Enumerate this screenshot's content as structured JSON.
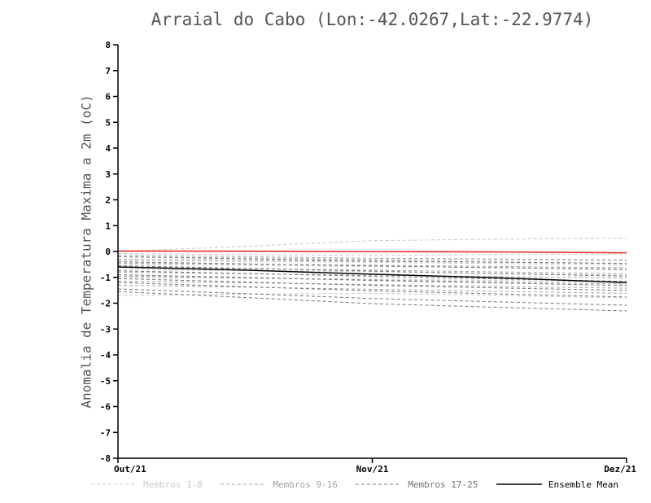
{
  "chart_data": {
    "type": "line",
    "title": "Arraial do Cabo (Lon:-42.0267,Lat:-22.9774)",
    "ylabel": "Anomalia de Temperatura Maxima a 2m (oC)",
    "xlabel": "",
    "xlim": [
      0,
      2
    ],
    "ylim": [
      -8,
      8
    ],
    "x": [
      0,
      0.5,
      1,
      1.5,
      2
    ],
    "x_tick_positions": [
      0,
      1,
      2
    ],
    "x_tick_labels": [
      "Out/21",
      "Nov/21",
      "Dez/21"
    ],
    "y_ticks": [
      8,
      7,
      6,
      5,
      4,
      3,
      2,
      1,
      0,
      -1,
      -2,
      -3,
      -4,
      -5,
      -6,
      -7,
      -8
    ],
    "grid": false,
    "legend_position": "bottom",
    "groups": [
      {
        "name": "Membros 1-8",
        "color": "#c9c9c9",
        "dashed": true,
        "members": [
          [
            0.0,
            0.2,
            0.42,
            0.48,
            0.52
          ],
          [
            -0.08,
            -0.12,
            -0.15,
            -0.12,
            -0.1
          ],
          [
            -0.2,
            -0.25,
            -0.3,
            -0.33,
            -0.36
          ],
          [
            -0.35,
            -0.38,
            -0.42,
            -0.47,
            -0.52
          ],
          [
            -0.5,
            -0.54,
            -0.58,
            -0.62,
            -0.68
          ],
          [
            -0.7,
            -0.74,
            -0.78,
            -0.85,
            -0.92
          ],
          [
            -1.0,
            -1.03,
            -1.07,
            -1.12,
            -1.18
          ],
          [
            -1.7,
            -1.65,
            -1.62,
            -1.7,
            -1.8
          ]
        ]
      },
      {
        "name": "Membros 9-16",
        "color": "#a3a3a3",
        "dashed": true,
        "members": [
          [
            -0.15,
            -0.2,
            -0.26,
            -0.29,
            -0.32
          ],
          [
            -0.3,
            -0.34,
            -0.38,
            -0.42,
            -0.47
          ],
          [
            -0.45,
            -0.49,
            -0.53,
            -0.58,
            -0.63
          ],
          [
            -0.6,
            -0.66,
            -0.72,
            -0.79,
            -0.86
          ],
          [
            -0.8,
            -0.86,
            -0.92,
            -0.97,
            -1.03
          ],
          [
            -0.95,
            -1.03,
            -1.1,
            -1.18,
            -1.26
          ],
          [
            -1.15,
            -1.21,
            -1.28,
            -1.35,
            -1.42
          ],
          [
            -1.3,
            -1.38,
            -1.46,
            -1.54,
            -1.62
          ]
        ]
      },
      {
        "name": "Membros 17-25",
        "color": "#757575",
        "dashed": true,
        "members": [
          [
            -0.2,
            -0.28,
            -0.36,
            -0.41,
            -0.46
          ],
          [
            -0.4,
            -0.48,
            -0.56,
            -0.63,
            -0.7
          ],
          [
            -0.55,
            -0.65,
            -0.76,
            -0.86,
            -0.95
          ],
          [
            -0.75,
            -0.85,
            -0.96,
            -1.06,
            -1.16
          ],
          [
            -0.9,
            -1.0,
            -1.12,
            -1.22,
            -1.32
          ],
          [
            -1.05,
            -1.18,
            -1.31,
            -1.41,
            -1.51
          ],
          [
            -1.2,
            -1.36,
            -1.52,
            -1.64,
            -1.76
          ],
          [
            -1.45,
            -1.63,
            -1.82,
            -1.95,
            -2.08
          ],
          [
            -1.55,
            -1.78,
            -2.02,
            -2.16,
            -2.3
          ]
        ]
      }
    ],
    "mean": {
      "name": "Ensemble Mean",
      "color": "#000000",
      "dashed": false,
      "values": [
        -0.6,
        -0.72,
        -0.88,
        -1.02,
        -1.2
      ]
    },
    "reference": {
      "name": "zero-reference-line",
      "color": "#e53030",
      "dashed": false,
      "values": [
        0.02,
        0.01,
        0.0,
        -0.02,
        -0.05
      ]
    }
  },
  "legend": [
    {
      "label": "Membros 1-8",
      "color": "#c9c9c9",
      "style": "dashed"
    },
    {
      "label": "Membros 9-16",
      "color": "#a3a3a3",
      "style": "dashed"
    },
    {
      "label": "Membros 17-25",
      "color": "#757575",
      "style": "dashed"
    },
    {
      "label": "Ensemble Mean",
      "color": "#000000",
      "style": "solid"
    }
  ]
}
